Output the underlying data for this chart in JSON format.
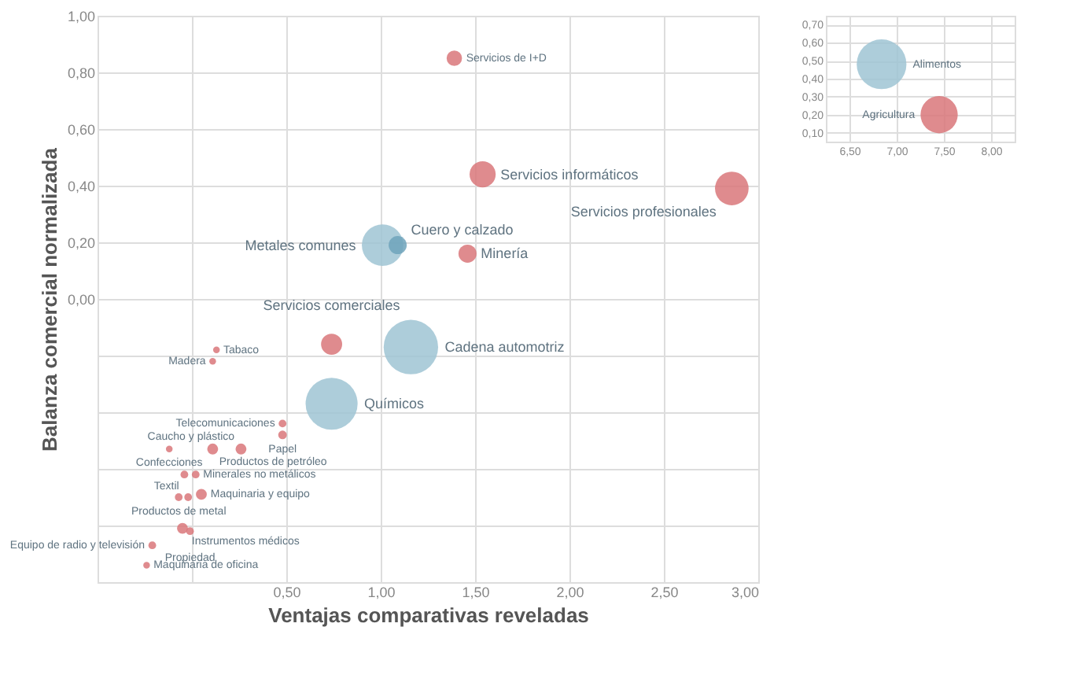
{
  "chart_data": [
    {
      "type": "bubble",
      "xlabel": "Ventajas comparativas reveladas",
      "ylabel": "Balanza comercial normalizada",
      "xlim": [
        -0.5,
        3.0
      ],
      "ylim": [
        -1.0,
        1.0
      ],
      "xticks": [
        {
          "value": -0.5,
          "label": null
        },
        {
          "value": 0.0,
          "label": null
        },
        {
          "value": 0.5,
          "label": "0,50"
        },
        {
          "value": 1.0,
          "label": "1,00"
        },
        {
          "value": 1.5,
          "label": "1,50"
        },
        {
          "value": 2.0,
          "label": "2,00"
        },
        {
          "value": 2.5,
          "label": "2,50"
        },
        {
          "value": 3.0,
          "label": "3,00"
        }
      ],
      "yticks": [
        {
          "value": -1.0,
          "label": null
        },
        {
          "value": -0.8,
          "label": null
        },
        {
          "value": -0.6,
          "label": null
        },
        {
          "value": -0.4,
          "label": null
        },
        {
          "value": -0.2,
          "label": null
        },
        {
          "value": 0.0,
          "label": "0,00"
        },
        {
          "value": 0.2,
          "label": "0,20"
        },
        {
          "value": 0.4,
          "label": "0,40"
        },
        {
          "value": 0.6,
          "label": "0,60"
        },
        {
          "value": 0.8,
          "label": "0,80"
        },
        {
          "value": 1.0,
          "label": "1,00"
        }
      ],
      "grid": true,
      "series": [
        {
          "x": [
            1.39,
            1.54,
            2.86,
            1.01,
            1.09,
            1.46,
            0.74,
            1.16,
            0.74,
            0.13,
            0.11,
            0.48,
            0.48,
            -0.12,
            0.11,
            0.26,
            -0.04,
            0.02,
            -0.07,
            -0.02,
            0.05,
            -0.05,
            -0.01,
            -0.21,
            -0.24
          ],
          "values": [
            0.85,
            0.44,
            0.39,
            0.19,
            0.19,
            0.16,
            -0.16,
            -0.17,
            -0.37,
            -0.18,
            -0.22,
            -0.44,
            -0.48,
            -0.53,
            -0.53,
            -0.53,
            -0.62,
            -0.62,
            -0.7,
            -0.7,
            -0.69,
            -0.81,
            -0.82,
            -0.87,
            -0.94
          ],
          "sizes": [
            0.08,
            0.23,
            0.38,
            0.58,
            0.11,
            0.11,
            0.15,
            1,
            0.91,
            0.015,
            0.015,
            0.02,
            0.025,
            0.015,
            0.04,
            0.04,
            0.02,
            0.02,
            0.02,
            0.02,
            0.04,
            0.04,
            0.02,
            0.02,
            0.015
          ],
          "colors": [
            "#d9777a",
            "#d9777a",
            "#d9777a",
            "#9fc4d4",
            "#6fa3bb",
            "#d9777a",
            "#d9777a",
            "#9fc4d4",
            "#9fc4d4",
            "#d9777a",
            "#d9777a",
            "#d9777a",
            "#d9777a",
            "#d9777a",
            "#d9777a",
            "#d9777a",
            "#d9777a",
            "#d9777a",
            "#d9777a",
            "#d9777a",
            "#d9777a",
            "#d9777a",
            "#d9777a",
            "#d9777a",
            "#d9777a"
          ]
        }
      ],
      "annotations": [
        {
          "text": "Servicios de I+D",
          "x": 1.39,
          "y": 0.85
        },
        {
          "text": "Servicios informáticos",
          "x": 1.54,
          "y": 0.44
        },
        {
          "text": "Servicios profesionales",
          "x": 2.86,
          "y": 0.39
        },
        {
          "text": "Metales comunes",
          "x": 1.01,
          "y": 0.19
        },
        {
          "text": "Cuero y calzado",
          "x": 1.09,
          "y": 0.19
        },
        {
          "text": "Minería",
          "x": 1.46,
          "y": 0.16
        },
        {
          "text": "Servicios comerciales",
          "x": 0.74,
          "y": -0.16
        },
        {
          "text": "Cadena automotriz",
          "x": 1.16,
          "y": -0.17
        },
        {
          "text": "Químicos",
          "x": 0.74,
          "y": -0.37
        },
        {
          "text": "Tabaco",
          "x": 0.13,
          "y": -0.18
        },
        {
          "text": "Madera",
          "x": 0.11,
          "y": -0.22
        },
        {
          "text": "Telecomunicaciones",
          "x": 0.48,
          "y": -0.44
        },
        {
          "text": "Papel",
          "x": 0.48,
          "y": -0.48
        },
        {
          "text": "Confecciones",
          "x": -0.12,
          "y": -0.53
        },
        {
          "text": "Productos de petróleo",
          "x": 0.11,
          "y": -0.53
        },
        {
          "text": "Caucho y plástico",
          "x": 0.26,
          "y": -0.53
        },
        {
          "text": "Textil",
          "x": -0.04,
          "y": -0.62
        },
        {
          "text": "Minerales no metálicos",
          "x": 0.02,
          "y": -0.62
        },
        {
          "text": "Productos de metal",
          "x": -0.07,
          "y": -0.7
        },
        {
          "text": "Maquinaria y equipo",
          "x": 0.05,
          "y": -0.69
        },
        {
          "text": "Instrumentos médicos",
          "x": -0.05,
          "y": -0.81
        },
        {
          "text": "Propiedad",
          "x": -0.01,
          "y": -0.82
        },
        {
          "text": "Equipo de radio y televisión",
          "x": -0.21,
          "y": -0.87
        },
        {
          "text": "Maquinaria de oficina",
          "x": -0.24,
          "y": -0.94
        }
      ]
    },
    {
      "type": "bubble",
      "xlim": [
        6.25,
        8.25
      ],
      "ylim": [
        0.05,
        0.75
      ],
      "xticks": [
        {
          "value": 6.5,
          "label": "6,50"
        },
        {
          "value": 7.0,
          "label": "7,00"
        },
        {
          "value": 7.5,
          "label": "7,50"
        },
        {
          "value": 8.0,
          "label": "8,00"
        }
      ],
      "yticks": [
        {
          "value": 0.1,
          "label": "0,10"
        },
        {
          "value": 0.2,
          "label": "0,20"
        },
        {
          "value": 0.3,
          "label": "0,30"
        },
        {
          "value": 0.4,
          "label": "0,40"
        },
        {
          "value": 0.5,
          "label": "0,50"
        },
        {
          "value": 0.6,
          "label": "0,60"
        },
        {
          "value": 0.7,
          "label": "0,70"
        }
      ],
      "grid": true,
      "series": [
        {
          "x": [
            6.84,
            7.45
          ],
          "values": [
            0.48,
            0.2
          ],
          "sizes": [
            1,
            0.56
          ],
          "colors": [
            "#9fc4d4",
            "#d9777a"
          ]
        }
      ],
      "annotations": [
        {
          "text": "Alimentos",
          "x": 6.84,
          "y": 0.48
        },
        {
          "text": "Agricultura",
          "x": 7.45,
          "y": 0.2
        }
      ]
    }
  ]
}
